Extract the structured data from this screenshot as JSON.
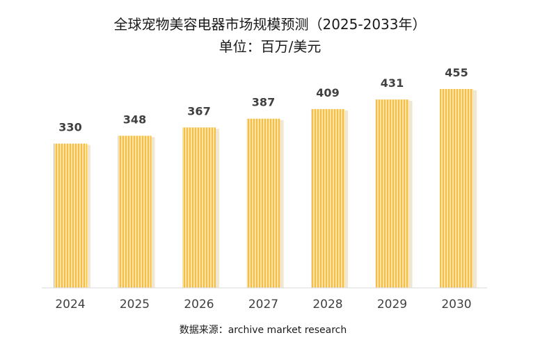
{
  "chart_data": {
    "type": "bar",
    "title": "全球宠物美容电器市场规模预测（2025-2033年）",
    "subtitle": "单位：百万/美元",
    "categories": [
      "2024",
      "2025",
      "2026",
      "2027",
      "2028",
      "2029",
      "2030"
    ],
    "values": [
      330,
      348,
      367,
      387,
      409,
      431,
      455
    ],
    "ylim": [
      0,
      480
    ],
    "grid": false,
    "legend": "none",
    "source": "数据来源：archive market research",
    "colors": {
      "bar_light": "#fbe3a4",
      "bar_stripe": "#f3be4a",
      "bar_shadow": "#efe6d3",
      "axis": "#d9d9d9"
    }
  }
}
